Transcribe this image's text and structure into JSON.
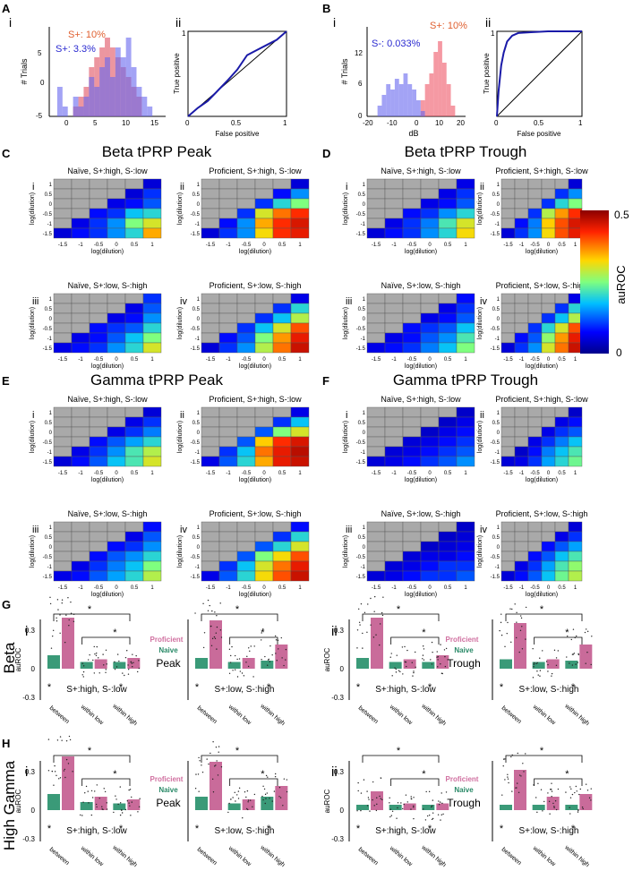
{
  "panel_labels": {
    "A": "A",
    "B": "B",
    "C": "C",
    "D": "D",
    "E": "E",
    "F": "F",
    "G": "G",
    "H": "H"
  },
  "sub_labels": {
    "i": "i",
    "ii": "ii",
    "iii": "iii",
    "iv": "iv"
  },
  "colors": {
    "splus": "#d9534f",
    "sminus": "#3333cc",
    "pink": "#c96b9a",
    "teal": "#3a9a78",
    "grey": "#a9a9a9",
    "roc_line": "#1a1aa8"
  },
  "hist_A": {
    "type": "bar",
    "ylabel": "# Trials",
    "xticks": [
      "0",
      "5",
      "10",
      "15"
    ],
    "yticks": [
      "-5",
      "0",
      "5"
    ],
    "legend": [
      "S+: 10%",
      "S+: 3.3%"
    ],
    "series": [
      {
        "name": "S+: 10%",
        "color": "#e05060",
        "x": [
          1,
          2,
          3,
          4,
          5,
          6,
          7,
          8,
          9,
          10,
          11,
          12,
          13
        ],
        "values": [
          1,
          2,
          3,
          5,
          6,
          7,
          8,
          7,
          6,
          5,
          4,
          3,
          2
        ]
      },
      {
        "name": "S+: 3.3%",
        "color": "#6666ee",
        "x": [
          -2,
          -1,
          0,
          1,
          2,
          3,
          4,
          5,
          6,
          7,
          8,
          9,
          10,
          11,
          12,
          13,
          14,
          15
        ],
        "values": [
          3,
          1,
          0,
          2,
          1,
          2,
          4,
          3,
          5,
          6,
          4,
          7,
          6,
          8,
          5,
          3,
          2,
          1
        ]
      }
    ]
  },
  "roc_A": {
    "type": "line",
    "xlabel": "False positive",
    "ylabel": "True positive",
    "xticks": [
      "0",
      "0.5",
      "1"
    ],
    "yticks": [
      "0",
      "0.5",
      "1"
    ],
    "x": [
      0,
      0.1,
      0.2,
      0.3,
      0.4,
      0.5,
      0.6,
      0.7,
      0.8,
      0.9,
      1
    ],
    "y": [
      0,
      0.1,
      0.18,
      0.3,
      0.42,
      0.55,
      0.72,
      0.78,
      0.84,
      0.9,
      1
    ]
  },
  "hist_B": {
    "type": "bar",
    "ylabel": "# Trials",
    "xlabel": "dB",
    "xticks": [
      "-20",
      "-10",
      "0",
      "10",
      "20"
    ],
    "yticks": [
      "0",
      "6",
      "12"
    ],
    "legend": [
      "S+: 10%",
      "S-: 0.033%"
    ],
    "series": [
      {
        "name": "S+: 10%",
        "color": "#ee5566",
        "x": [
          2,
          4,
          6,
          8,
          10,
          12,
          14,
          16
        ],
        "values": [
          3,
          6,
          8,
          12,
          14,
          10,
          6,
          2
        ]
      },
      {
        "name": "S-: 0.033%",
        "color": "#6666ee",
        "x": [
          -18,
          -16,
          -14,
          -12,
          -10,
          -8,
          -6,
          -4,
          -2,
          0,
          2
        ],
        "values": [
          2,
          4,
          6,
          5,
          7,
          6,
          8,
          6,
          5,
          3,
          1
        ]
      }
    ]
  },
  "roc_B": {
    "type": "line",
    "xlabel": "False positive",
    "ylabel": "True positive",
    "xticks": [
      "0",
      "0.5",
      "1"
    ],
    "yticks": [
      "0",
      "0.5",
      "1"
    ],
    "x": [
      0,
      0.02,
      0.05,
      0.08,
      0.12,
      0.18,
      0.25,
      0.4,
      0.6,
      0.8,
      1
    ],
    "y": [
      0,
      0.3,
      0.6,
      0.75,
      0.88,
      0.95,
      0.98,
      0.99,
      1,
      1,
      1
    ]
  },
  "heatmap_common": {
    "xlabel": "log(dilution)",
    "ylabel": "log(dilution)",
    "ticks": [
      "-1.5",
      "-1",
      "-0.5",
      "0",
      "0.5",
      "1"
    ]
  },
  "heatmaps": {
    "C_title": "Beta tPRP Peak",
    "D_title": "Beta tPRP Trough",
    "E_title": "Gamma tPRP Peak",
    "F_title": "Gamma tPRP Trough",
    "C": {
      "i": {
        "title": "Naïve, S+:high, S-:low",
        "values": [
          [
            0.05,
            0.08,
            0.1,
            0.15,
            0.2,
            0.35
          ],
          [
            0,
            0.06,
            0.1,
            0.15,
            0.25,
            0.3
          ],
          [
            0,
            0,
            0.08,
            0.1,
            0.18,
            0.2
          ],
          [
            0,
            0,
            0,
            0.06,
            0.08,
            0.12
          ],
          [
            0,
            0,
            0,
            0,
            0.05,
            0.1
          ],
          [
            0,
            0,
            0,
            0,
            0,
            0.05
          ]
        ]
      },
      "ii": {
        "title": "Proficient, S+:high, S-:low",
        "values": [
          [
            0.05,
            0.1,
            0.15,
            0.32,
            0.42,
            0.44
          ],
          [
            0,
            0.08,
            0.15,
            0.35,
            0.42,
            0.45
          ],
          [
            0,
            0,
            0.1,
            0.3,
            0.38,
            0.42
          ],
          [
            0,
            0,
            0,
            0.1,
            0.2,
            0.25
          ],
          [
            0,
            0,
            0,
            0,
            0.08,
            0.15
          ],
          [
            0,
            0,
            0,
            0,
            0,
            0.05
          ]
        ]
      },
      "iii": {
        "title": "Naïve, S+:low, S-:high",
        "values": [
          [
            0.06,
            0.08,
            0.1,
            0.15,
            0.2,
            0.3
          ],
          [
            0,
            0.06,
            0.08,
            0.12,
            0.18,
            0.25
          ],
          [
            0,
            0,
            0.08,
            0.1,
            0.12,
            0.2
          ],
          [
            0,
            0,
            0,
            0.06,
            0.08,
            0.15
          ],
          [
            0,
            0,
            0,
            0,
            0.06,
            0.12
          ],
          [
            0,
            0,
            0,
            0,
            0,
            0.1
          ]
        ]
      },
      "iv": {
        "title": "Proficient, S+:low, S-:high",
        "values": [
          [
            0.05,
            0.1,
            0.15,
            0.28,
            0.38,
            0.46
          ],
          [
            0,
            0.08,
            0.12,
            0.25,
            0.36,
            0.44
          ],
          [
            0,
            0,
            0.1,
            0.18,
            0.3,
            0.4
          ],
          [
            0,
            0,
            0,
            0.1,
            0.18,
            0.28
          ],
          [
            0,
            0,
            0,
            0,
            0.1,
            0.2
          ],
          [
            0,
            0,
            0,
            0,
            0,
            0.06
          ]
        ]
      }
    },
    "D": {
      "i": {
        "title": "Naïve, S+:high, S-:low",
        "values": [
          [
            0.05,
            0.08,
            0.1,
            0.15,
            0.2,
            0.32
          ],
          [
            0,
            0.06,
            0.1,
            0.14,
            0.22,
            0.3
          ],
          [
            0,
            0,
            0.08,
            0.1,
            0.15,
            0.2
          ],
          [
            0,
            0,
            0,
            0.06,
            0.08,
            0.12
          ],
          [
            0,
            0,
            0,
            0,
            0.06,
            0.1
          ],
          [
            0,
            0,
            0,
            0,
            0,
            0.06
          ]
        ]
      },
      "ii": {
        "title": "Proficient, S+:high, S-:low",
        "values": [
          [
            0.05,
            0.1,
            0.15,
            0.32,
            0.4,
            0.44
          ],
          [
            0,
            0.08,
            0.14,
            0.33,
            0.4,
            0.45
          ],
          [
            0,
            0,
            0.1,
            0.28,
            0.36,
            0.42
          ],
          [
            0,
            0,
            0,
            0.1,
            0.2,
            0.25
          ],
          [
            0,
            0,
            0,
            0,
            0.1,
            0.15
          ],
          [
            0,
            0,
            0,
            0,
            0,
            0.05
          ]
        ]
      },
      "iii": {
        "title": "Naïve, S+:low, S-:high",
        "values": [
          [
            0.06,
            0.08,
            0.1,
            0.14,
            0.18,
            0.25
          ],
          [
            0,
            0.06,
            0.08,
            0.12,
            0.15,
            0.22
          ],
          [
            0,
            0,
            0.08,
            0.1,
            0.12,
            0.18
          ],
          [
            0,
            0,
            0,
            0.06,
            0.08,
            0.12
          ],
          [
            0,
            0,
            0,
            0,
            0.06,
            0.1
          ],
          [
            0,
            0,
            0,
            0,
            0,
            0.08
          ]
        ]
      },
      "iv": {
        "title": "Proficient, S+:low, S-:high",
        "values": [
          [
            0.05,
            0.1,
            0.15,
            0.3,
            0.38,
            0.46
          ],
          [
            0,
            0.08,
            0.12,
            0.26,
            0.36,
            0.44
          ],
          [
            0,
            0,
            0.1,
            0.2,
            0.3,
            0.4
          ],
          [
            0,
            0,
            0,
            0.1,
            0.18,
            0.28
          ],
          [
            0,
            0,
            0,
            0,
            0.1,
            0.2
          ],
          [
            0,
            0,
            0,
            0,
            0,
            0.06
          ]
        ]
      }
    },
    "E": {
      "i": {
        "title": "Naïve, S+:high, S-:low",
        "values": [
          [
            0.05,
            0.08,
            0.12,
            0.18,
            0.22,
            0.3
          ],
          [
            0,
            0.06,
            0.1,
            0.15,
            0.22,
            0.28
          ],
          [
            0,
            0,
            0.08,
            0.12,
            0.16,
            0.2
          ],
          [
            0,
            0,
            0,
            0.06,
            0.1,
            0.14
          ],
          [
            0,
            0,
            0,
            0,
            0.06,
            0.1
          ],
          [
            0,
            0,
            0,
            0,
            0,
            0.05
          ]
        ]
      },
      "ii": {
        "title": "Proficient, S+:high, S-:low",
        "values": [
          [
            0.06,
            0.12,
            0.2,
            0.35,
            0.44,
            0.46
          ],
          [
            0,
            0.1,
            0.18,
            0.38,
            0.44,
            0.47
          ],
          [
            0,
            0,
            0.12,
            0.33,
            0.42,
            0.45
          ],
          [
            0,
            0,
            0,
            0.12,
            0.25,
            0.3
          ],
          [
            0,
            0,
            0,
            0,
            0.1,
            0.18
          ],
          [
            0,
            0,
            0,
            0,
            0,
            0.06
          ]
        ]
      },
      "iii": {
        "title": "Naïve, S+:low, S-:high",
        "values": [
          [
            0.06,
            0.08,
            0.12,
            0.16,
            0.2,
            0.28
          ],
          [
            0,
            0.06,
            0.1,
            0.14,
            0.18,
            0.25
          ],
          [
            0,
            0,
            0.08,
            0.12,
            0.15,
            0.2
          ],
          [
            0,
            0,
            0,
            0.08,
            0.1,
            0.15
          ],
          [
            0,
            0,
            0,
            0,
            0.06,
            0.12
          ],
          [
            0,
            0,
            0,
            0,
            0,
            0.08
          ]
        ]
      },
      "iv": {
        "title": "Proficient, S+:low, S-:high",
        "values": [
          [
            0.06,
            0.12,
            0.2,
            0.32,
            0.4,
            0.46
          ],
          [
            0,
            0.1,
            0.18,
            0.3,
            0.38,
            0.44
          ],
          [
            0,
            0,
            0.12,
            0.25,
            0.32,
            0.4
          ],
          [
            0,
            0,
            0,
            0.12,
            0.2,
            0.3
          ],
          [
            0,
            0,
            0,
            0,
            0.1,
            0.2
          ],
          [
            0,
            0,
            0,
            0,
            0,
            0.08
          ]
        ]
      }
    },
    "F": {
      "i": {
        "title": "Naïve, S+:high, S-:low",
        "values": [
          [
            0.05,
            0.06,
            0.08,
            0.1,
            0.12,
            0.15
          ],
          [
            0,
            0.05,
            0.06,
            0.08,
            0.1,
            0.12
          ],
          [
            0,
            0,
            0.05,
            0.06,
            0.08,
            0.1
          ],
          [
            0,
            0,
            0,
            0.04,
            0.06,
            0.08
          ],
          [
            0,
            0,
            0,
            0,
            0.04,
            0.06
          ],
          [
            0,
            0,
            0,
            0,
            0,
            0.04
          ]
        ]
      },
      "ii": {
        "title": "Proficient, S+:high, S-:low",
        "values": [
          [
            0.05,
            0.06,
            0.1,
            0.16,
            0.2,
            0.24
          ],
          [
            0,
            0.04,
            0.08,
            0.14,
            0.18,
            0.22
          ],
          [
            0,
            0,
            0.06,
            0.1,
            0.14,
            0.18
          ],
          [
            0,
            0,
            0,
            0.06,
            0.1,
            0.12
          ],
          [
            0,
            0,
            0,
            0,
            0.06,
            0.08
          ],
          [
            0,
            0,
            0,
            0,
            0,
            0.04
          ]
        ]
      },
      "iii": {
        "title": "Naïve, S+:low, S-:high",
        "values": [
          [
            0.05,
            0.06,
            0.08,
            0.1,
            0.1,
            0.12
          ],
          [
            0,
            0.05,
            0.06,
            0.08,
            0.1,
            0.1
          ],
          [
            0,
            0,
            0.05,
            0.06,
            0.06,
            0.08
          ],
          [
            0,
            0,
            0,
            0.04,
            0.05,
            0.06
          ],
          [
            0,
            0,
            0,
            0,
            0.04,
            0.05
          ],
          [
            0,
            0,
            0,
            0,
            0,
            0.04
          ]
        ]
      },
      "iv": {
        "title": "Proficient, S+:low, S-:high",
        "values": [
          [
            0.05,
            0.08,
            0.12,
            0.18,
            0.24,
            0.28
          ],
          [
            0,
            0.06,
            0.1,
            0.16,
            0.22,
            0.26
          ],
          [
            0,
            0,
            0.08,
            0.12,
            0.18,
            0.22
          ],
          [
            0,
            0,
            0,
            0.08,
            0.12,
            0.16
          ],
          [
            0,
            0,
            0,
            0,
            0.06,
            0.1
          ],
          [
            0,
            0,
            0,
            0,
            0,
            0.05
          ]
        ]
      }
    }
  },
  "colorbar": {
    "label": "auROC",
    "max": "0.5",
    "min": "0"
  },
  "barplots": {
    "row_G": "Beta",
    "row_H": "High Gamma",
    "ylabel": "auROC",
    "yticks": [
      "0.3",
      "0",
      "-0.3"
    ],
    "categories": [
      "between",
      "within low",
      "within high"
    ],
    "legend_proficient": "Proficient",
    "legend_naive": "Naive",
    "peak": "Peak",
    "trough": "Trough",
    "cond_a": "S+:high, S-:low",
    "cond_b": "S+:low, S-:high",
    "star": "*",
    "G_i_a": {
      "naive": [
        0.1,
        0.05,
        0.05
      ],
      "proficient": [
        0.38,
        0.07,
        0.08
      ]
    },
    "G_i_b": {
      "naive": [
        0.08,
        0.05,
        0.06
      ],
      "proficient": [
        0.36,
        0.08,
        0.18
      ]
    },
    "G_ii_a": {
      "naive": [
        0.08,
        0.05,
        0.05
      ],
      "proficient": [
        0.38,
        0.07,
        0.1
      ]
    },
    "G_ii_b": {
      "naive": [
        0.07,
        0.05,
        0.06
      ],
      "proficient": [
        0.34,
        0.07,
        0.18
      ]
    },
    "H_i_a": {
      "naive": [
        0.12,
        0.06,
        0.05
      ],
      "proficient": [
        0.4,
        0.1,
        0.08
      ]
    },
    "H_i_b": {
      "naive": [
        0.1,
        0.05,
        0.1
      ],
      "proficient": [
        0.36,
        0.08,
        0.18
      ]
    },
    "H_ii_a": {
      "naive": [
        0.04,
        0.04,
        0.04
      ],
      "proficient": [
        0.14,
        0.05,
        0.05
      ]
    },
    "H_ii_b": {
      "naive": [
        0.04,
        0.04,
        0.04
      ],
      "proficient": [
        0.3,
        0.1,
        0.12
      ]
    }
  }
}
